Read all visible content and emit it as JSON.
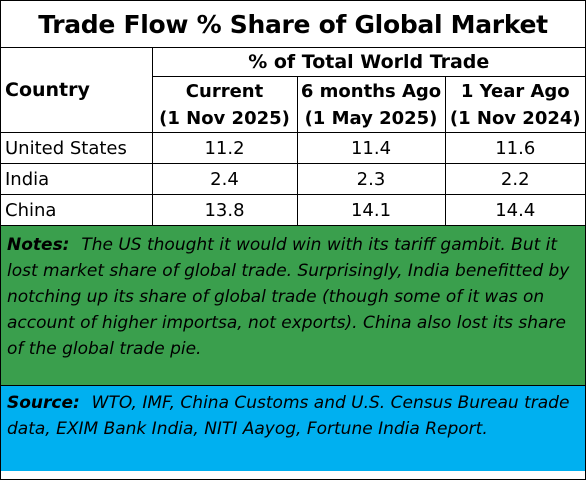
{
  "title": "Trade Flow % Share of Global Market",
  "table": {
    "group_header": "% of Total World Trade",
    "country_header": "Country",
    "columns": [
      {
        "line1": "Current",
        "line2": "(1 Nov 2025)"
      },
      {
        "line1": "6 months Ago",
        "line2": "(1 May 2025)"
      },
      {
        "line1": "1 Year Ago",
        "line2": "(1 Nov 2024)"
      }
    ],
    "rows": [
      {
        "country": "United States",
        "values": [
          "11.2",
          "11.4",
          "11.6"
        ]
      },
      {
        "country": "India",
        "values": [
          "2.4",
          "2.3",
          "2.2"
        ]
      },
      {
        "country": "China",
        "values": [
          "13.8",
          "14.1",
          "14.4"
        ]
      }
    ]
  },
  "notes": {
    "label": "Notes:",
    "text": "The US thought it would win with its tariff gambit. But it lost market share of global trade.  Surprisingly, India benefitted by notching up its share of global trade (though some of it was on account of higher importsa, not exports). China also lost its share of the global trade pie."
  },
  "source": {
    "label": "Source:",
    "text": "WTO, IMF, China Customs and U.S. Census Bureau trade data, EXIM Bank India, NITI Aayog, Fortune India Report."
  },
  "colors": {
    "notes_bg": "#3a9f4d",
    "source_bg": "#00b0f0"
  }
}
